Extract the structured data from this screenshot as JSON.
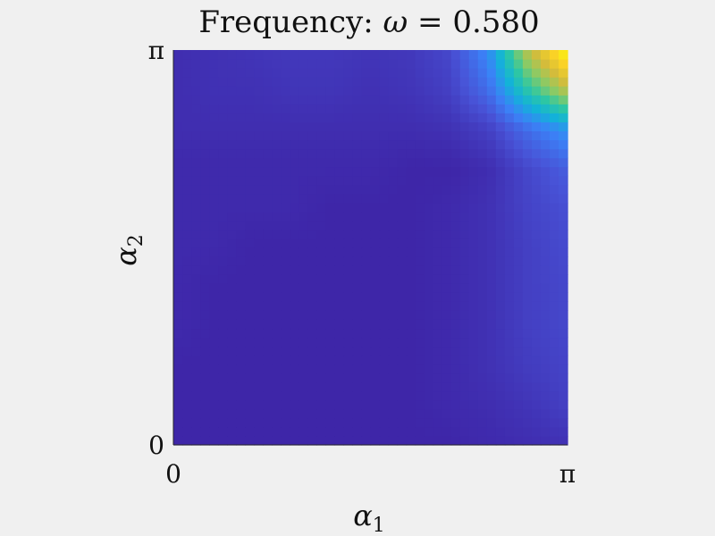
{
  "chart_data": {
    "type": "heatmap",
    "title": "Frequency: ω = 0.580",
    "title_parts": {
      "prefix": "Frequency: ",
      "symbol": "ω",
      "relation": " = ",
      "value": "0.580"
    },
    "xlabel": {
      "base": "α",
      "sub": "1"
    },
    "ylabel": {
      "base": "α",
      "sub": "2"
    },
    "xlim": [
      0,
      3.14159
    ],
    "ylim": [
      0,
      3.14159
    ],
    "xticks": [
      {
        "value": 0,
        "label": "0"
      },
      {
        "value": 3.14159,
        "label": "π"
      }
    ],
    "yticks": [
      {
        "value": 0,
        "label": "0"
      },
      {
        "value": 3.14159,
        "label": "π"
      }
    ],
    "colormap": "parula",
    "colormap_stops": [
      "#3e26a8",
      "#4853d7",
      "#3b82f7",
      "#12b2d9",
      "#2ec7a3",
      "#8bca65",
      "#d4bc3b",
      "#fbd325",
      "#f9fb0e"
    ],
    "grid": false,
    "x": [
      0,
      0.31416,
      0.62832,
      0.94248,
      1.25664,
      1.5708,
      1.88496,
      2.19911,
      2.51327,
      2.82743,
      3.14159
    ],
    "y": [
      0,
      0.31416,
      0.62832,
      0.94248,
      1.25664,
      1.5708,
      1.88496,
      2.19911,
      2.51327,
      2.82743,
      3.14159
    ],
    "z": [
      [
        0.03,
        0.03,
        0.03,
        0.03,
        0.03,
        0.03,
        0.03,
        0.03,
        0.04,
        0.05,
        0.06
      ],
      [
        0.03,
        0.03,
        0.03,
        0.03,
        0.03,
        0.03,
        0.03,
        0.04,
        0.05,
        0.07,
        0.1
      ],
      [
        0.03,
        0.03,
        0.03,
        0.03,
        0.03,
        0.03,
        0.03,
        0.04,
        0.06,
        0.09,
        0.11
      ],
      [
        0.04,
        0.03,
        0.03,
        0.03,
        0.03,
        0.03,
        0.03,
        0.04,
        0.06,
        0.1,
        0.12
      ],
      [
        0.04,
        0.03,
        0.03,
        0.03,
        0.03,
        0.03,
        0.03,
        0.04,
        0.06,
        0.1,
        0.12
      ],
      [
        0.04,
        0.04,
        0.03,
        0.03,
        0.03,
        0.03,
        0.03,
        0.04,
        0.06,
        0.1,
        0.13
      ],
      [
        0.04,
        0.04,
        0.04,
        0.04,
        0.03,
        0.03,
        0.03,
        0.04,
        0.06,
        0.11,
        0.14
      ],
      [
        0.04,
        0.04,
        0.04,
        0.04,
        0.04,
        0.04,
        0.03,
        0.03,
        0.05,
        0.12,
        0.18
      ],
      [
        0.05,
        0.05,
        0.05,
        0.05,
        0.05,
        0.05,
        0.05,
        0.06,
        0.1,
        0.22,
        0.32
      ],
      [
        0.05,
        0.06,
        0.06,
        0.07,
        0.07,
        0.06,
        0.07,
        0.1,
        0.22,
        0.5,
        0.72
      ],
      [
        0.05,
        0.06,
        0.07,
        0.08,
        0.08,
        0.07,
        0.08,
        0.12,
        0.3,
        0.72,
        1.0
      ]
    ]
  }
}
